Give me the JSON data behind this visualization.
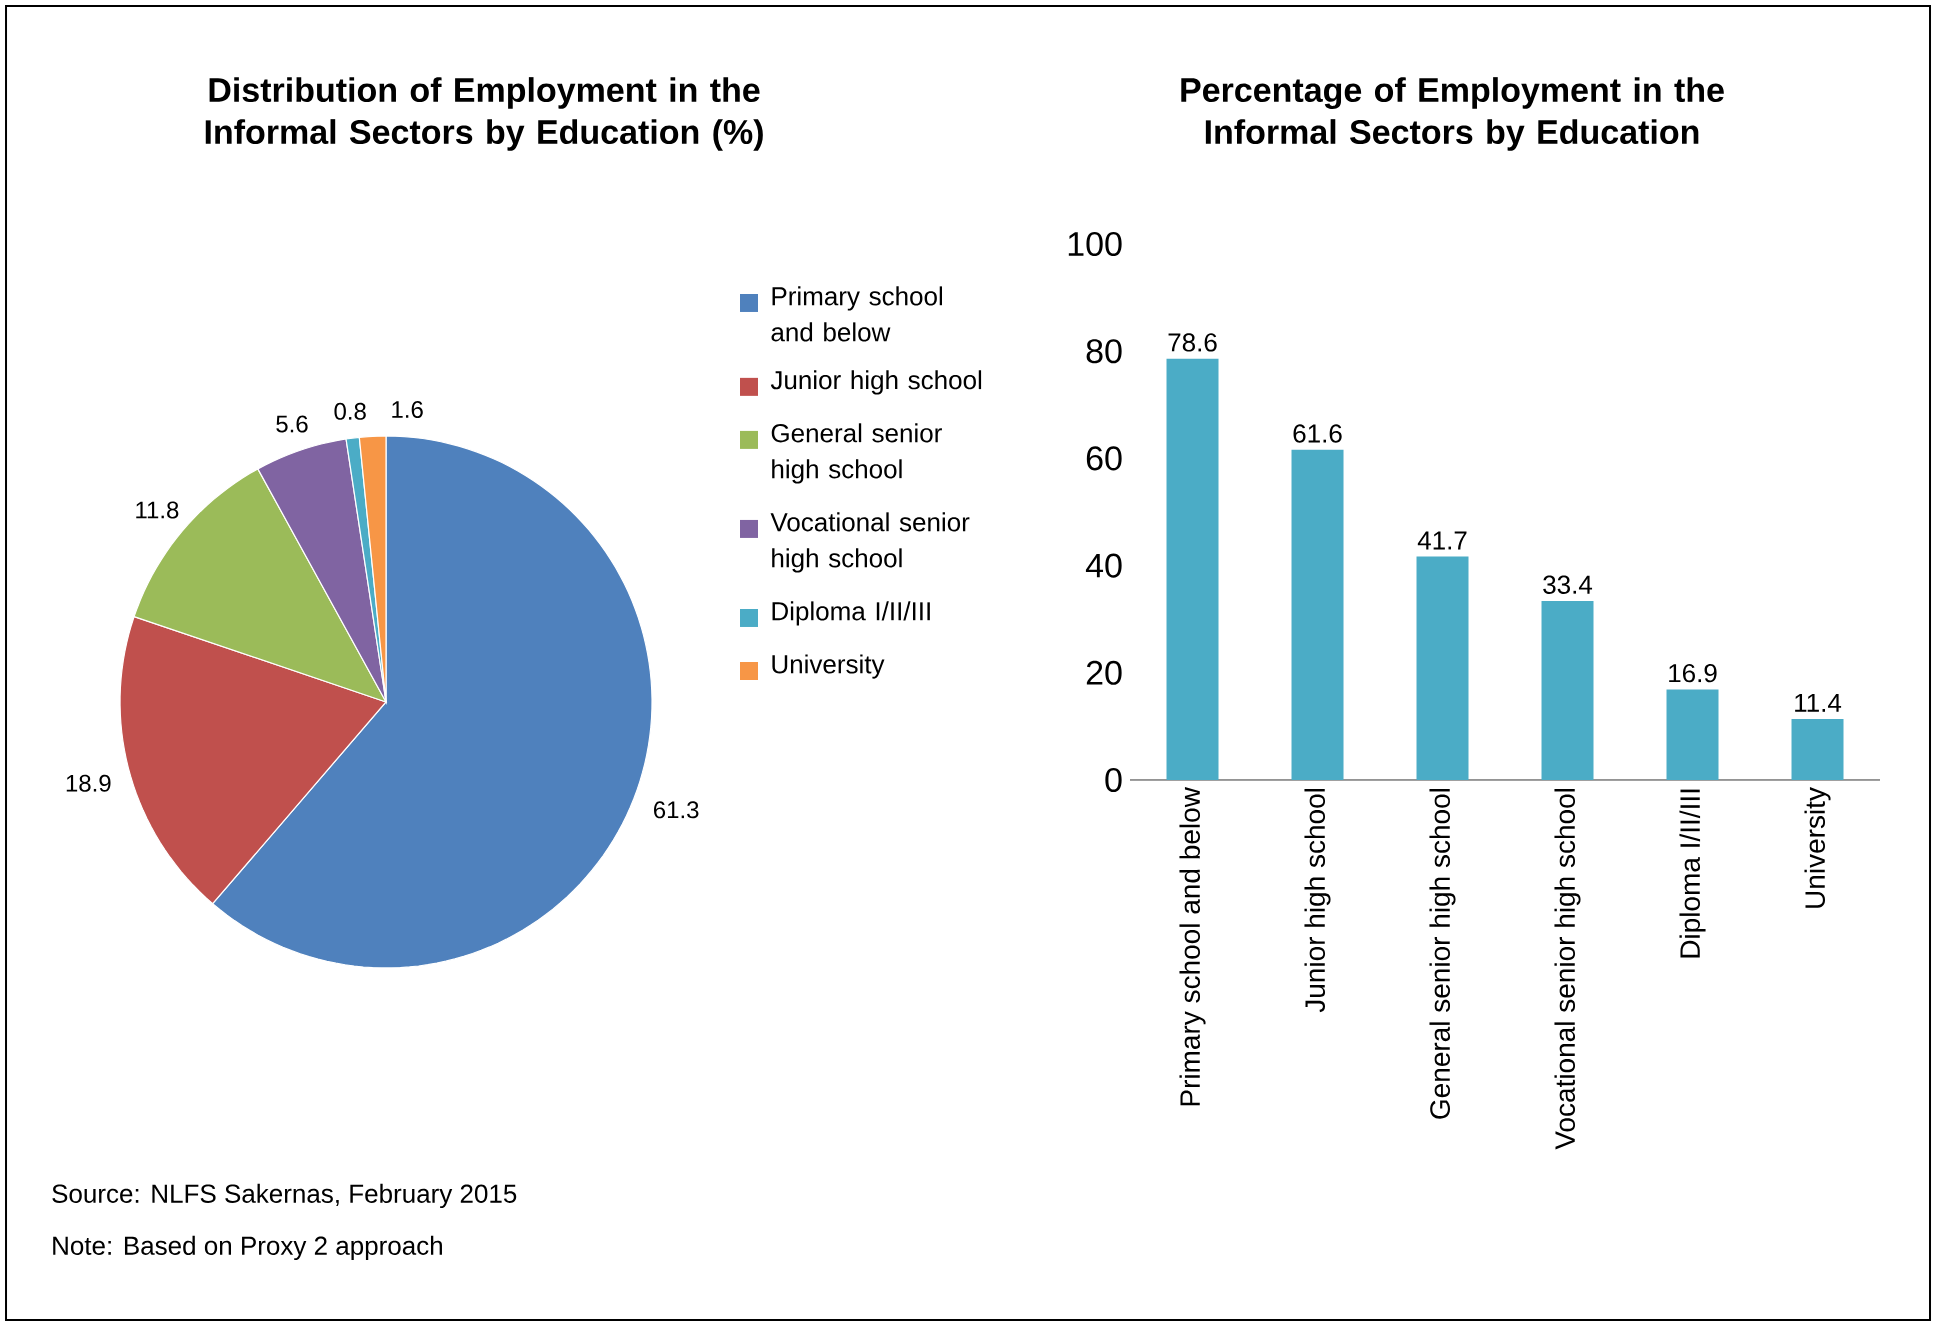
{
  "chart_data": [
    {
      "type": "pie",
      "title": "Distribution of Employment in the Informal Sectors by Education (%)",
      "categories": [
        "Primary school and below",
        "Junior high school",
        "General senior high school",
        "Vocational senior high school",
        "Diploma I/II/III",
        "University"
      ],
      "values": [
        61.3,
        18.9,
        11.8,
        5.6,
        0.8,
        1.6
      ],
      "colors": [
        "#4f81bd",
        "#c0504d",
        "#9bbb59",
        "#8064a2",
        "#4bacc6",
        "#f79646"
      ],
      "data_labels": true,
      "legend": "right",
      "annotations": [
        "Source: NLFS Sakernas, February 2015",
        "Note: Based on Proxy 2 approach"
      ]
    },
    {
      "type": "bar",
      "title": "Percentage of Employment in the Informal Sectors by Education",
      "categories": [
        "Primary school and below",
        "Junior high school",
        "General senior high school",
        "Vocational senior high school",
        "Diploma I/II/III",
        "University"
      ],
      "values": [
        78.6,
        61.6,
        41.7,
        33.4,
        16.9,
        11.4
      ],
      "color": "#4bacc6",
      "ylim": [
        0,
        100
      ],
      "yticks": [
        0,
        20,
        40,
        60,
        80,
        100
      ],
      "data_labels": true
    }
  ]
}
